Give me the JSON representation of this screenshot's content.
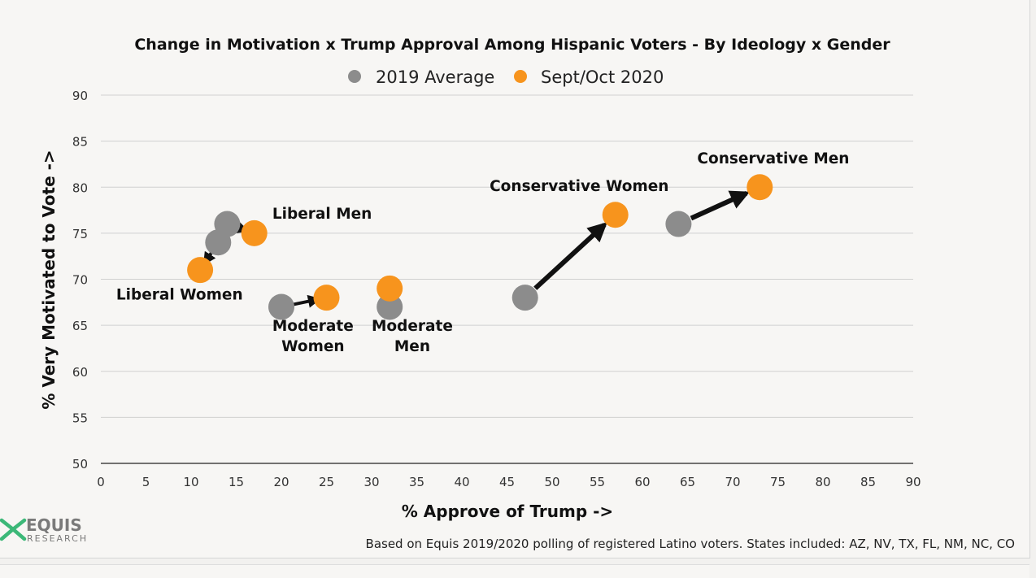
{
  "chart_data": {
    "type": "scatter",
    "title": "Change in Motivation x Trump Approval Among Hispanic Voters - By Ideology x Gender",
    "xlabel": "% Approve of Trump ->",
    "ylabel": "% Very Motivated to Vote ->",
    "xlim": [
      0,
      90
    ],
    "ylim": [
      50,
      90
    ],
    "x_ticks": [
      0,
      5,
      10,
      15,
      20,
      25,
      30,
      35,
      40,
      45,
      50,
      55,
      60,
      65,
      70,
      75,
      80,
      85,
      90
    ],
    "y_ticks": [
      50,
      55,
      60,
      65,
      70,
      75,
      80,
      85,
      90
    ],
    "grid": "horizontal",
    "legend": "top-center",
    "series": [
      {
        "name": "2019 Average",
        "color": "#8c8c8c",
        "points": [
          {
            "group": "Liberal Men",
            "x": 14,
            "y": 76
          },
          {
            "group": "Liberal Women",
            "x": 13,
            "y": 74
          },
          {
            "group": "Moderate Women",
            "x": 20,
            "y": 67
          },
          {
            "group": "Moderate Men",
            "x": 32,
            "y": 67
          },
          {
            "group": "Conservative Women",
            "x": 47,
            "y": 68
          },
          {
            "group": "Conservative Men",
            "x": 64,
            "y": 76
          }
        ]
      },
      {
        "name": "Sept/Oct 2020",
        "color": "#f7941d",
        "points": [
          {
            "group": "Liberal Men",
            "x": 17,
            "y": 75
          },
          {
            "group": "Liberal Women",
            "x": 11,
            "y": 71
          },
          {
            "group": "Moderate Women",
            "x": 25,
            "y": 68
          },
          {
            "group": "Moderate Men",
            "x": 32,
            "y": 69
          },
          {
            "group": "Conservative Women",
            "x": 57,
            "y": 77
          },
          {
            "group": "Conservative Men",
            "x": 73,
            "y": 80
          }
        ]
      }
    ],
    "annotations": [
      {
        "lines": [
          "Liberal Men"
        ],
        "x": 19,
        "y": 76.6,
        "anchor": "start"
      },
      {
        "lines": [
          "Liberal Women"
        ],
        "x": 1.7,
        "y": 67.8,
        "anchor": "start"
      },
      {
        "lines": [
          "Moderate",
          "Women"
        ],
        "x": 23.5,
        "y": 64.4,
        "anchor": "middle"
      },
      {
        "lines": [
          "Moderate",
          "Men"
        ],
        "x": 34.5,
        "y": 64.4,
        "anchor": "middle"
      },
      {
        "lines": [
          "Conservative Women"
        ],
        "x": 53,
        "y": 79.6,
        "anchor": "middle"
      },
      {
        "lines": [
          "Conservative Men"
        ],
        "x": 74.5,
        "y": 82.6,
        "anchor": "middle"
      }
    ],
    "arrows": [
      {
        "from": [
          14,
          76
        ],
        "to": [
          17,
          75
        ],
        "size": "small"
      },
      {
        "from": [
          13,
          74
        ],
        "to": [
          11,
          71
        ],
        "size": "small"
      },
      {
        "from": [
          20,
          67
        ],
        "to": [
          25,
          68
        ],
        "size": "small"
      },
      {
        "from": [
          47,
          68
        ],
        "to": [
          57,
          77
        ],
        "size": "large"
      },
      {
        "from": [
          64,
          76
        ],
        "to": [
          73,
          80
        ],
        "size": "large"
      }
    ]
  },
  "footnote": "Based on Equis 2019/2020 polling of registered Latino voters. States included: AZ, NV, TX, FL, NM, NC, CO",
  "logo": {
    "main": "EQUIS",
    "sub": "RESEARCH"
  }
}
